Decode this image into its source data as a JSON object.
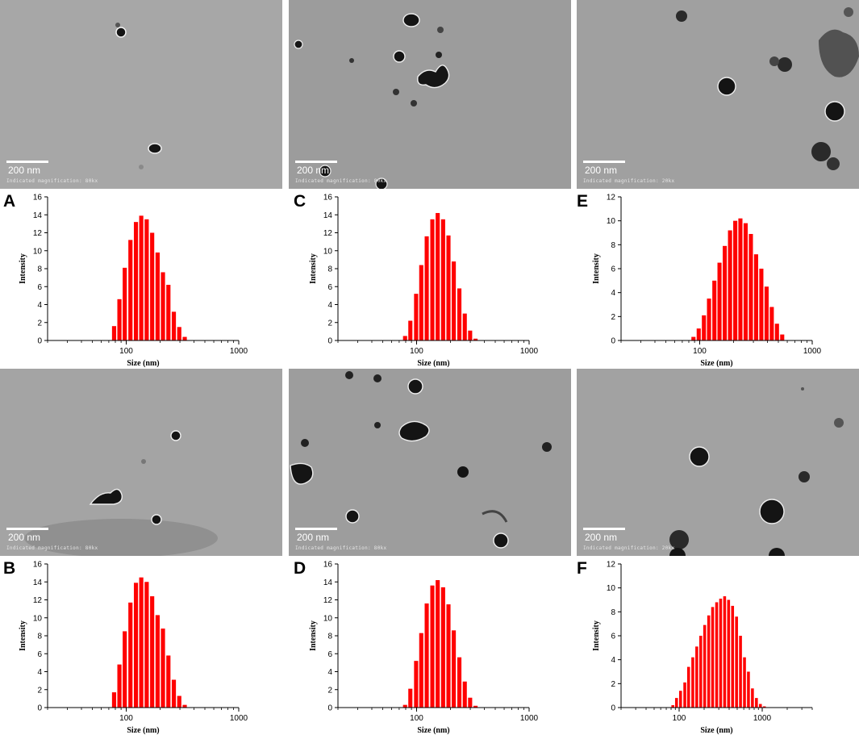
{
  "tem": [
    {
      "id": "A",
      "scale": "200 nm",
      "magnification": "Indicated magnification: 80kx"
    },
    {
      "id": "C",
      "scale": "200 nm",
      "magnification": "Indicated magnification: 80kx"
    },
    {
      "id": "E",
      "scale": "200 nm",
      "magnification": "Indicated magnification: 20kx"
    },
    {
      "id": "B",
      "scale": "200 nm",
      "magnification": "Indicated magnification: 80kx"
    },
    {
      "id": "D",
      "scale": "200 nm",
      "magnification": "Indicated magnification: 80kx"
    },
    {
      "id": "F",
      "scale": "200 nm",
      "magnification": "Indicated magnification: 20kx"
    }
  ],
  "chart_data": [
    {
      "panel": "A",
      "type": "bar",
      "xscale": "log",
      "xlabel": "Size (nm)",
      "ylabel": "Intensity",
      "xlim": [
        20,
        1000
      ],
      "ylim": [
        0,
        16
      ],
      "xticks": [
        100,
        1000
      ],
      "yticks": [
        0,
        2,
        4,
        6,
        8,
        10,
        12,
        14,
        16
      ],
      "bar_color": "#ff0000",
      "x": [
        78,
        87,
        97,
        109,
        122,
        136,
        152,
        170,
        190,
        212,
        237,
        265,
        296,
        331,
        370,
        413,
        461
      ],
      "values": [
        1.6,
        4.6,
        8.1,
        11.2,
        13.2,
        13.9,
        13.5,
        12.0,
        9.8,
        7.6,
        6.2,
        3.2,
        1.5,
        0.4,
        0,
        0,
        0
      ]
    },
    {
      "panel": "C",
      "type": "bar",
      "xscale": "log",
      "xlabel": "Size (nm)",
      "ylabel": "Intensity",
      "xlim": [
        20,
        1000
      ],
      "ylim": [
        0,
        16
      ],
      "xticks": [
        100,
        1000
      ],
      "yticks": [
        0,
        2,
        4,
        6,
        8,
        10,
        12,
        14,
        16
      ],
      "bar_color": "#ff0000",
      "x": [
        79,
        88,
        99,
        110,
        123,
        138,
        154,
        172,
        192,
        214,
        240,
        268,
        299,
        334,
        373,
        417,
        466,
        520
      ],
      "values": [
        0.5,
        2.2,
        5.2,
        8.4,
        11.6,
        13.5,
        14.2,
        13.5,
        11.7,
        8.8,
        5.8,
        3.0,
        1.1,
        0.2,
        0,
        0,
        0,
        0
      ]
    },
    {
      "panel": "E",
      "type": "bar",
      "xscale": "log",
      "xlabel": "Size (nm)",
      "ylabel": "Intensity",
      "xlim": [
        20,
        1000
      ],
      "ylim": [
        0,
        12
      ],
      "xticks": [
        100,
        1000
      ],
      "yticks": [
        0,
        2,
        4,
        6,
        8,
        10,
        12
      ],
      "bar_color": "#ff0000",
      "x": [
        88,
        98,
        109,
        121,
        135,
        150,
        167,
        186,
        207,
        230,
        256,
        285,
        317,
        353,
        393,
        437,
        486,
        541,
        602,
        670,
        746,
        830,
        924
      ],
      "values": [
        0.3,
        1.0,
        2.1,
        3.5,
        5.0,
        6.5,
        7.9,
        9.2,
        10.0,
        10.2,
        9.8,
        8.9,
        7.2,
        6.0,
        4.5,
        2.8,
        1.4,
        0.5,
        0,
        0,
        0,
        0,
        0
      ]
    },
    {
      "panel": "B",
      "type": "bar",
      "xscale": "log",
      "xlabel": "Size (nm)",
      "ylabel": "Intensity",
      "xlim": [
        20,
        1000
      ],
      "ylim": [
        0,
        16
      ],
      "xticks": [
        100,
        1000
      ],
      "yticks": [
        0,
        2,
        4,
        6,
        8,
        10,
        12,
        14,
        16
      ],
      "bar_color": "#ff0000",
      "x": [
        78,
        87,
        97,
        109,
        122,
        136,
        152,
        170,
        190,
        212,
        237,
        265,
        296,
        331,
        370,
        413,
        461
      ],
      "values": [
        1.7,
        4.8,
        8.5,
        11.7,
        13.9,
        14.5,
        14.0,
        12.4,
        10.3,
        8.8,
        5.8,
        3.1,
        1.3,
        0.3,
        0,
        0,
        0
      ]
    },
    {
      "panel": "D",
      "type": "bar",
      "xscale": "log",
      "xlabel": "Size (nm)",
      "ylabel": "Intensity",
      "xlim": [
        20,
        1000
      ],
      "ylim": [
        0,
        16
      ],
      "xticks": [
        100,
        1000
      ],
      "yticks": [
        0,
        2,
        4,
        6,
        8,
        10,
        12,
        14,
        16
      ],
      "bar_color": "#ff0000",
      "x": [
        79,
        88,
        99,
        110,
        123,
        138,
        154,
        172,
        192,
        214,
        240,
        268,
        299,
        334,
        373,
        417,
        466,
        520
      ],
      "values": [
        0.3,
        2.1,
        5.2,
        8.3,
        11.6,
        13.6,
        14.2,
        13.4,
        11.5,
        8.6,
        5.6,
        2.9,
        1.1,
        0.2,
        0,
        0,
        0,
        0
      ]
    },
    {
      "panel": "F",
      "type": "bar",
      "xscale": "log",
      "xlabel": "Size (nm)",
      "ylabel": "Intensity",
      "xlim": [
        20,
        4000
      ],
      "ylim": [
        0,
        12
      ],
      "xticks": [
        100,
        1000
      ],
      "yticks": [
        0,
        2,
        4,
        6,
        8,
        10,
        12
      ],
      "bar_color": "#ff0000",
      "x": [
        84,
        93,
        104,
        117,
        130,
        146,
        163,
        182,
        203,
        227,
        253,
        283,
        316,
        353,
        394,
        440,
        491,
        548,
        612,
        683,
        763,
        852,
        951,
        1062,
        1186,
        1324,
        1478
      ],
      "values": [
        0.2,
        0.8,
        1.4,
        2.1,
        3.4,
        4.2,
        5.1,
        6.0,
        6.9,
        7.7,
        8.4,
        8.8,
        9.1,
        9.3,
        9.0,
        8.5,
        7.6,
        6.0,
        4.2,
        3.0,
        1.6,
        0.8,
        0.3,
        0.1,
        0,
        0,
        0
      ]
    }
  ]
}
